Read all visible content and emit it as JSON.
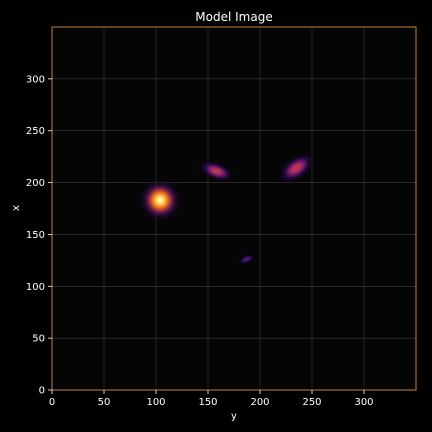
{
  "chart_data": {
    "type": "heatmap",
    "title": "Model Image",
    "xlabel": "y",
    "ylabel": "x",
    "xlim": [
      0,
      350
    ],
    "ylim": [
      0,
      350
    ],
    "xticks": [
      0,
      50,
      100,
      150,
      200,
      250,
      300
    ],
    "yticks": [
      0,
      50,
      100,
      150,
      200,
      250,
      300
    ],
    "grid": true,
    "colormap": "magma",
    "colors": {
      "background": "#000000",
      "plot_background": "#050505",
      "frame": "#c8813a",
      "grid": "#3a3a3a",
      "text": "#ffffff"
    },
    "sources": [
      {
        "y": 104,
        "x": 183,
        "sigma_y": 9,
        "sigma_x": 9,
        "angle": 0,
        "peak": 1.0
      },
      {
        "y": 158,
        "x": 211,
        "sigma_y": 8,
        "sigma_x": 4,
        "angle": -20,
        "peak": 0.55
      },
      {
        "y": 235,
        "x": 214,
        "sigma_y": 9,
        "sigma_x": 5,
        "angle": 35,
        "peak": 0.55
      },
      {
        "y": 187,
        "x": 126,
        "sigma_y": 4,
        "sigma_x": 2,
        "angle": 25,
        "peak": 0.3
      }
    ]
  }
}
